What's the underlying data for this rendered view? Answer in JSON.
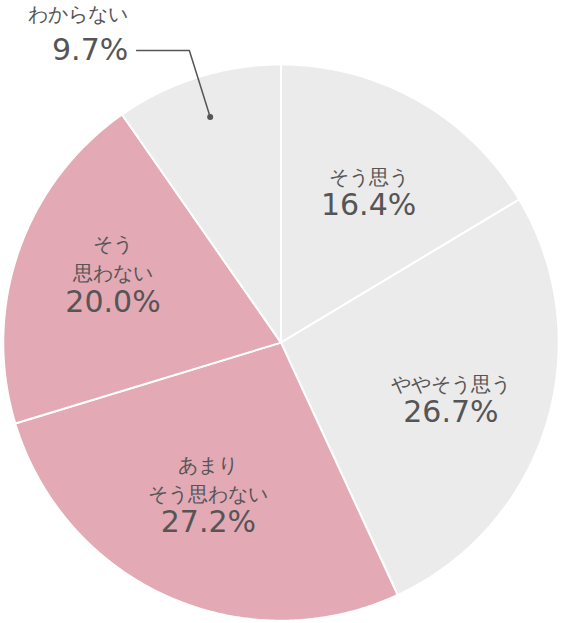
{
  "chart_data": {
    "type": "pie",
    "categories": [
      "そう思う",
      "ややそう思う",
      "あまり\nそう思わない",
      "そう\n思わない",
      "わからない"
    ],
    "values": [
      16.4,
      26.7,
      27.2,
      20.0,
      9.7
    ],
    "value_labels": [
      "16.4%",
      "26.7%",
      "27.2%",
      "20.0%",
      "9.7%"
    ],
    "colors": [
      "#ebebeb",
      "#ebebeb",
      "#e3a9b5",
      "#e3a9b5",
      "#ebebeb"
    ],
    "data_labels": true
  }
}
